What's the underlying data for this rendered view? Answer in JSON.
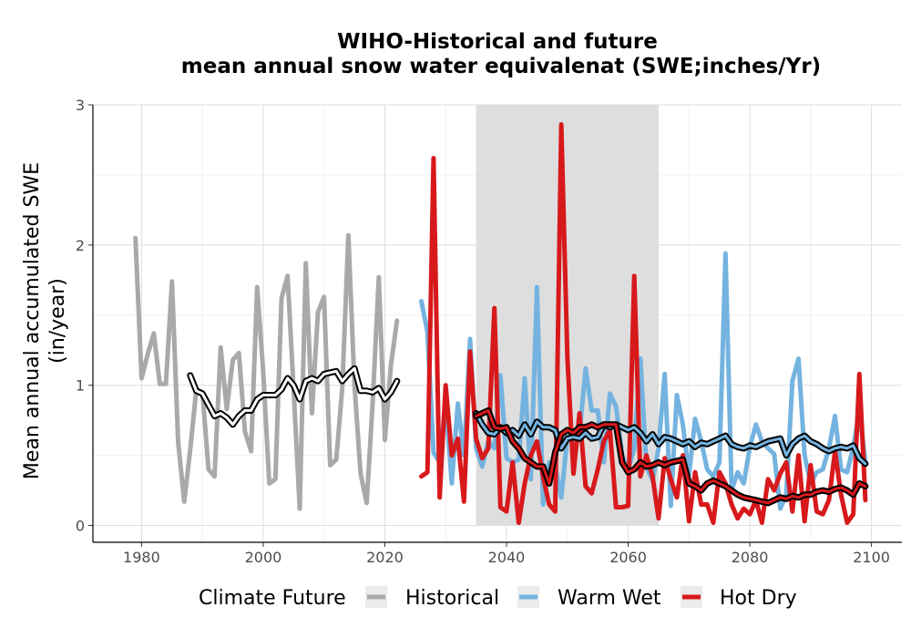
{
  "chart_data": {
    "type": "line",
    "title_line1": "WIHO-Historical and future",
    "title_line2": "mean annual snow water equivalenat (SWE;inches/Yr)",
    "xlabel": "",
    "ylabel_line1": "Mean annual accumulated SWE",
    "ylabel_line2": "(in/year)",
    "xlim": [
      1972,
      2105
    ],
    "ylim": [
      -0.12,
      3.0
    ],
    "x_ticks": [
      1980,
      2000,
      2020,
      2040,
      2060,
      2080,
      2100
    ],
    "y_ticks": [
      0,
      1,
      2,
      3
    ],
    "grid": true,
    "shaded_period": {
      "x_start": 2035,
      "x_end": 2065,
      "color": "#dcdcdc"
    },
    "legend": {
      "title": "Climate Future",
      "position": "bottom",
      "entries": [
        "Historical",
        "Warm Wet",
        "Hot Dry"
      ]
    },
    "series": [
      {
        "name": "Historical",
        "color": "#a9a9a9",
        "x": [
          1979,
          1980,
          1981,
          1982,
          1983,
          1984,
          1985,
          1986,
          1987,
          1988,
          1989,
          1990,
          1991,
          1992,
          1993,
          1994,
          1995,
          1996,
          1997,
          1998,
          1999,
          2000,
          2001,
          2002,
          2003,
          2004,
          2005,
          2006,
          2007,
          2008,
          2009,
          2010,
          2011,
          2012,
          2013,
          2014,
          2015,
          2016,
          2017,
          2018,
          2019,
          2020,
          2021,
          2022
        ],
        "values": [
          2.05,
          1.05,
          1.22,
          1.37,
          1.01,
          1.01,
          1.74,
          0.6,
          0.17,
          0.54,
          0.97,
          0.95,
          0.4,
          0.35,
          1.27,
          0.83,
          1.18,
          1.23,
          0.67,
          0.53,
          1.7,
          1.1,
          0.3,
          0.33,
          1.62,
          1.78,
          0.97,
          0.12,
          1.87,
          0.8,
          1.52,
          1.63,
          0.43,
          0.47,
          0.98,
          2.07,
          1.0,
          0.37,
          0.16,
          0.88,
          1.77,
          0.61,
          1.15,
          1.46
        ]
      },
      {
        "name": "Historical running mean",
        "color": "#000000",
        "x": [
          1988,
          1989,
          1990,
          1991,
          1992,
          1993,
          1994,
          1995,
          1996,
          1997,
          1998,
          1999,
          2000,
          2001,
          2002,
          2003,
          2004,
          2005,
          2006,
          2007,
          2008,
          2009,
          2010,
          2011,
          2012,
          2013,
          2014,
          2015,
          2016,
          2017,
          2018,
          2019,
          2020,
          2021,
          2022
        ],
        "values": [
          1.07,
          0.96,
          0.94,
          0.86,
          0.78,
          0.8,
          0.77,
          0.72,
          0.78,
          0.82,
          0.82,
          0.9,
          0.93,
          0.93,
          0.93,
          0.97,
          1.05,
          1.0,
          0.9,
          1.03,
          1.05,
          1.03,
          1.08,
          1.09,
          1.1,
          1.03,
          1.08,
          1.12,
          0.96,
          0.96,
          0.95,
          0.98,
          0.9,
          0.95,
          1.03
        ]
      },
      {
        "name": "Warm Wet",
        "color": "#74b3df",
        "x": [
          2026,
          2027,
          2028,
          2029,
          2030,
          2031,
          2032,
          2033,
          2034,
          2035,
          2036,
          2037,
          2038,
          2039,
          2040,
          2041,
          2042,
          2043,
          2044,
          2045,
          2046,
          2047,
          2048,
          2049,
          2050,
          2051,
          2052,
          2053,
          2054,
          2055,
          2056,
          2057,
          2058,
          2059,
          2060,
          2061,
          2062,
          2063,
          2064,
          2065,
          2066,
          2067,
          2068,
          2069,
          2070,
          2071,
          2072,
          2073,
          2074,
          2075,
          2076,
          2077,
          2078,
          2079,
          2080,
          2081,
          2082,
          2083,
          2084,
          2085,
          2086,
          2087,
          2088,
          2089,
          2090,
          2091,
          2092,
          2093,
          2094,
          2095,
          2096,
          2097,
          2098,
          2099
        ],
        "values": [
          1.6,
          1.38,
          0.52,
          0.45,
          0.89,
          0.3,
          0.87,
          0.5,
          1.33,
          0.55,
          0.42,
          0.6,
          0.55,
          1.07,
          0.48,
          0.45,
          0.47,
          1.05,
          0.33,
          1.7,
          0.15,
          0.45,
          0.43,
          0.2,
          0.63,
          0.65,
          0.65,
          1.12,
          0.82,
          0.82,
          0.45,
          0.94,
          0.85,
          0.5,
          0.4,
          0.55,
          1.19,
          0.42,
          0.32,
          0.55,
          1.08,
          0.14,
          0.93,
          0.72,
          0.36,
          0.76,
          0.6,
          0.4,
          0.35,
          0.45,
          1.94,
          0.25,
          0.38,
          0.3,
          0.56,
          0.72,
          0.6,
          0.55,
          0.51,
          0.12,
          0.22,
          1.03,
          1.19,
          0.5,
          0.3,
          0.38,
          0.4,
          0.55,
          0.78,
          0.4,
          0.38,
          0.56,
          0.81,
          0.46
        ]
      },
      {
        "name": "Warm Wet running mean",
        "color": "#000000",
        "x": [
          2035,
          2036,
          2037,
          2038,
          2039,
          2040,
          2041,
          2042,
          2043,
          2044,
          2045,
          2046,
          2047,
          2048,
          2049,
          2050,
          2051,
          2052,
          2053,
          2054,
          2055,
          2056,
          2057,
          2058,
          2059,
          2060,
          2061,
          2062,
          2063,
          2064,
          2065,
          2066,
          2067,
          2068,
          2069,
          2070,
          2071,
          2072,
          2073,
          2074,
          2075,
          2076,
          2077,
          2078,
          2079,
          2080,
          2081,
          2082,
          2083,
          2084,
          2085,
          2086,
          2087,
          2088,
          2089,
          2090,
          2091,
          2092,
          2093,
          2094,
          2095,
          2096,
          2097,
          2098,
          2099
        ],
        "values": [
          0.8,
          0.72,
          0.66,
          0.65,
          0.7,
          0.66,
          0.68,
          0.64,
          0.72,
          0.65,
          0.74,
          0.7,
          0.7,
          0.68,
          0.55,
          0.62,
          0.63,
          0.62,
          0.66,
          0.62,
          0.63,
          0.72,
          0.7,
          0.72,
          0.7,
          0.68,
          0.7,
          0.66,
          0.6,
          0.65,
          0.58,
          0.63,
          0.62,
          0.6,
          0.58,
          0.6,
          0.56,
          0.59,
          0.58,
          0.6,
          0.62,
          0.64,
          0.58,
          0.56,
          0.55,
          0.57,
          0.56,
          0.58,
          0.6,
          0.61,
          0.62,
          0.5,
          0.58,
          0.62,
          0.64,
          0.6,
          0.58,
          0.55,
          0.53,
          0.55,
          0.56,
          0.55,
          0.57,
          0.48,
          0.44
        ]
      },
      {
        "name": "Hot Dry",
        "color": "#d7191c",
        "x": [
          2026,
          2027,
          2028,
          2029,
          2030,
          2031,
          2032,
          2033,
          2034,
          2035,
          2036,
          2037,
          2038,
          2039,
          2040,
          2041,
          2042,
          2043,
          2044,
          2045,
          2046,
          2047,
          2048,
          2049,
          2050,
          2051,
          2052,
          2053,
          2054,
          2055,
          2056,
          2057,
          2058,
          2059,
          2060,
          2061,
          2062,
          2063,
          2064,
          2065,
          2066,
          2067,
          2068,
          2069,
          2070,
          2071,
          2072,
          2073,
          2074,
          2075,
          2076,
          2077,
          2078,
          2079,
          2080,
          2081,
          2082,
          2083,
          2084,
          2085,
          2086,
          2087,
          2088,
          2089,
          2090,
          2091,
          2092,
          2093,
          2094,
          2095,
          2096,
          2097,
          2098,
          2099
        ],
        "values": [
          0.35,
          0.38,
          2.62,
          0.2,
          1.0,
          0.5,
          0.62,
          0.17,
          1.24,
          0.62,
          0.48,
          0.55,
          1.55,
          0.13,
          0.1,
          0.45,
          0.02,
          0.3,
          0.5,
          0.6,
          0.35,
          0.15,
          0.1,
          2.86,
          1.2,
          0.37,
          0.8,
          0.28,
          0.23,
          0.4,
          0.6,
          0.68,
          0.13,
          0.13,
          0.14,
          1.78,
          0.35,
          0.5,
          0.35,
          0.05,
          0.48,
          0.33,
          0.2,
          0.5,
          0.03,
          0.38,
          0.15,
          0.15,
          0.02,
          0.38,
          0.3,
          0.15,
          0.05,
          0.12,
          0.08,
          0.18,
          0.02,
          0.33,
          0.25,
          0.37,
          0.45,
          0.1,
          0.5,
          0.03,
          0.43,
          0.1,
          0.08,
          0.18,
          0.53,
          0.22,
          0.02,
          0.08,
          1.08,
          0.18
        ]
      },
      {
        "name": "Hot Dry running mean",
        "color": "#000000",
        "x": [
          2035,
          2036,
          2037,
          2038,
          2039,
          2040,
          2041,
          2042,
          2043,
          2044,
          2045,
          2046,
          2047,
          2048,
          2049,
          2050,
          2051,
          2052,
          2053,
          2054,
          2055,
          2056,
          2057,
          2058,
          2059,
          2060,
          2061,
          2062,
          2063,
          2064,
          2065,
          2066,
          2067,
          2068,
          2069,
          2070,
          2071,
          2072,
          2073,
          2074,
          2075,
          2076,
          2077,
          2078,
          2079,
          2080,
          2081,
          2082,
          2083,
          2084,
          2085,
          2086,
          2087,
          2088,
          2089,
          2090,
          2091,
          2092,
          2093,
          2094,
          2095,
          2096,
          2097,
          2098,
          2099
        ],
        "values": [
          0.78,
          0.8,
          0.82,
          0.7,
          0.69,
          0.7,
          0.6,
          0.55,
          0.48,
          0.45,
          0.42,
          0.42,
          0.3,
          0.52,
          0.65,
          0.68,
          0.66,
          0.7,
          0.7,
          0.72,
          0.7,
          0.72,
          0.72,
          0.72,
          0.45,
          0.38,
          0.4,
          0.45,
          0.42,
          0.43,
          0.45,
          0.43,
          0.45,
          0.46,
          0.47,
          0.3,
          0.28,
          0.25,
          0.3,
          0.32,
          0.3,
          0.28,
          0.25,
          0.22,
          0.2,
          0.19,
          0.18,
          0.17,
          0.16,
          0.18,
          0.2,
          0.19,
          0.21,
          0.2,
          0.22,
          0.22,
          0.24,
          0.25,
          0.24,
          0.26,
          0.27,
          0.25,
          0.22,
          0.3,
          0.28
        ]
      }
    ]
  }
}
